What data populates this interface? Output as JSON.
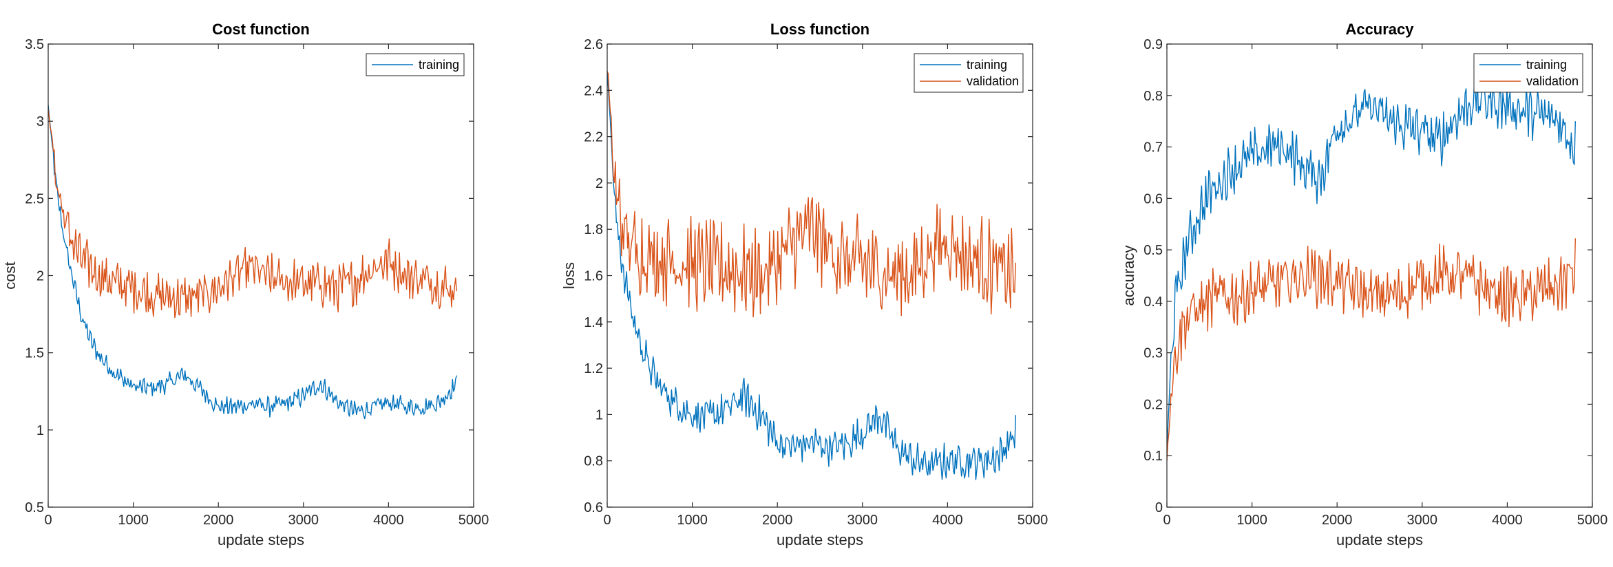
{
  "colors": {
    "training": "#0072BD",
    "validation": "#D95319",
    "axis": "#262626"
  },
  "chart_data": [
    {
      "type": "line",
      "title": "Cost function",
      "xlabel": "update steps",
      "ylabel": "cost",
      "xlim": [
        0,
        5000
      ],
      "ylim": [
        0.5,
        3.5
      ],
      "xticks": [
        0,
        1000,
        2000,
        3000,
        4000,
        5000
      ],
      "yticks": [
        0.5,
        1,
        1.5,
        2,
        2.5,
        3,
        3.5
      ],
      "ytick_labels": [
        "0.5",
        "1",
        "1.5",
        "2",
        "2.5",
        "3",
        "3.5"
      ],
      "legend": {
        "placement": "top-right",
        "entries": [
          "training"
        ]
      },
      "series": [
        {
          "name": "training",
          "color": "#0072BD",
          "x": [
            0,
            100,
            200,
            300,
            400,
            500,
            600,
            800,
            1000,
            1200,
            1400,
            1600,
            1800,
            2000,
            2200,
            2400,
            2600,
            2800,
            3000,
            3200,
            3400,
            3600,
            3800,
            4000,
            4200,
            4400,
            4600,
            4800
          ],
          "y": [
            3.1,
            2.55,
            2.2,
            1.95,
            1.72,
            1.58,
            1.48,
            1.36,
            1.28,
            1.27,
            1.3,
            1.36,
            1.26,
            1.15,
            1.15,
            1.17,
            1.15,
            1.17,
            1.22,
            1.3,
            1.18,
            1.12,
            1.14,
            1.18,
            1.15,
            1.15,
            1.18,
            1.3
          ],
          "noise": 0.05
        },
        {
          "name": "validation",
          "color": "#D95319",
          "x": [
            0,
            100,
            200,
            300,
            400,
            500,
            600,
            800,
            1000,
            1200,
            1400,
            1600,
            1800,
            2000,
            2200,
            2400,
            2600,
            2800,
            3000,
            3200,
            3400,
            3600,
            3800,
            4000,
            4200,
            4400,
            4600,
            4800
          ],
          "y": [
            3.1,
            2.6,
            2.35,
            2.2,
            2.1,
            2.05,
            2.0,
            1.95,
            1.92,
            1.88,
            1.86,
            1.85,
            1.87,
            1.92,
            2.0,
            2.05,
            1.98,
            1.96,
            1.95,
            1.95,
            1.92,
            1.96,
            2.05,
            2.1,
            2.0,
            1.98,
            1.94,
            1.9
          ],
          "noise": 0.12
        }
      ]
    },
    {
      "type": "line",
      "title": "Loss function",
      "xlabel": "update steps",
      "ylabel": "loss",
      "xlim": [
        0,
        5000
      ],
      "ylim": [
        0.6,
        2.6
      ],
      "xticks": [
        0,
        1000,
        2000,
        3000,
        4000,
        5000
      ],
      "yticks": [
        0.6,
        0.8,
        1,
        1.2,
        1.4,
        1.6,
        1.8,
        2,
        2.2,
        2.4,
        2.6
      ],
      "ytick_labels": [
        "0.6",
        "0.8",
        "1",
        "1.2",
        "1.4",
        "1.6",
        "1.8",
        "2",
        "2.2",
        "2.4",
        "2.6"
      ],
      "legend": {
        "placement": "top-right",
        "entries": [
          "training",
          "validation"
        ]
      },
      "series": [
        {
          "name": "training",
          "color": "#0072BD",
          "x": [
            0,
            100,
            200,
            300,
            400,
            500,
            600,
            800,
            1000,
            1200,
            1400,
            1600,
            1800,
            2000,
            2200,
            2400,
            2600,
            2800,
            3000,
            3200,
            3400,
            3600,
            3800,
            4000,
            4200,
            4400,
            4600,
            4800
          ],
          "y": [
            2.5,
            1.85,
            1.6,
            1.42,
            1.3,
            1.2,
            1.13,
            1.05,
            1.0,
            0.99,
            1.02,
            1.08,
            1.0,
            0.88,
            0.86,
            0.88,
            0.86,
            0.87,
            0.92,
            1.0,
            0.86,
            0.8,
            0.78,
            0.8,
            0.8,
            0.8,
            0.82,
            0.92
          ],
          "noise": 0.06
        },
        {
          "name": "validation",
          "color": "#D95319",
          "x": [
            0,
            100,
            200,
            300,
            400,
            500,
            600,
            800,
            1000,
            1200,
            1400,
            1600,
            1800,
            2000,
            2200,
            2400,
            2600,
            2800,
            3000,
            3200,
            3400,
            3600,
            3800,
            4000,
            4200,
            4400,
            4600,
            4800
          ],
          "y": [
            2.5,
            1.95,
            1.78,
            1.72,
            1.7,
            1.68,
            1.68,
            1.66,
            1.65,
            1.64,
            1.63,
            1.62,
            1.6,
            1.66,
            1.75,
            1.8,
            1.72,
            1.66,
            1.65,
            1.62,
            1.6,
            1.62,
            1.7,
            1.76,
            1.68,
            1.66,
            1.62,
            1.6
          ],
          "noise": 0.15
        }
      ]
    },
    {
      "type": "line",
      "title": "Accuracy",
      "xlabel": "update steps",
      "ylabel": "accuracy",
      "xlim": [
        0,
        5000
      ],
      "ylim": [
        0,
        0.9
      ],
      "xticks": [
        0,
        1000,
        2000,
        3000,
        4000,
        5000
      ],
      "yticks": [
        0,
        0.1,
        0.2,
        0.3,
        0.4,
        0.5,
        0.6,
        0.7,
        0.8,
        0.9
      ],
      "ytick_labels": [
        "0",
        "0.1",
        "0.2",
        "0.3",
        "0.4",
        "0.5",
        "0.6",
        "0.7",
        "0.8",
        "0.9"
      ],
      "legend": {
        "placement": "top-right",
        "entries": [
          "training",
          "validation"
        ]
      },
      "series": [
        {
          "name": "training",
          "color": "#0072BD",
          "x": [
            0,
            50,
            100,
            200,
            300,
            400,
            500,
            600,
            800,
            1000,
            1200,
            1400,
            1600,
            1800,
            2000,
            2200,
            2400,
            2600,
            2800,
            3000,
            3200,
            3400,
            3600,
            3800,
            4000,
            4200,
            4400,
            4600,
            4800
          ],
          "y": [
            0.1,
            0.3,
            0.4,
            0.48,
            0.54,
            0.58,
            0.61,
            0.63,
            0.66,
            0.68,
            0.7,
            0.7,
            0.66,
            0.64,
            0.74,
            0.76,
            0.78,
            0.75,
            0.74,
            0.73,
            0.71,
            0.76,
            0.79,
            0.79,
            0.78,
            0.77,
            0.76,
            0.75,
            0.7
          ],
          "noise": 0.04
        },
        {
          "name": "validation",
          "color": "#D95319",
          "x": [
            0,
            50,
            100,
            200,
            300,
            400,
            500,
            600,
            800,
            1000,
            1200,
            1400,
            1600,
            1800,
            2000,
            2200,
            2400,
            2600,
            2800,
            3000,
            3200,
            3400,
            3600,
            3800,
            4000,
            4200,
            4400,
            4600,
            4800
          ],
          "y": [
            0.1,
            0.22,
            0.3,
            0.36,
            0.38,
            0.39,
            0.4,
            0.41,
            0.41,
            0.42,
            0.43,
            0.44,
            0.45,
            0.45,
            0.44,
            0.42,
            0.41,
            0.41,
            0.42,
            0.44,
            0.45,
            0.45,
            0.44,
            0.42,
            0.41,
            0.41,
            0.42,
            0.43,
            0.46
          ],
          "noise": 0.045
        }
      ]
    }
  ]
}
